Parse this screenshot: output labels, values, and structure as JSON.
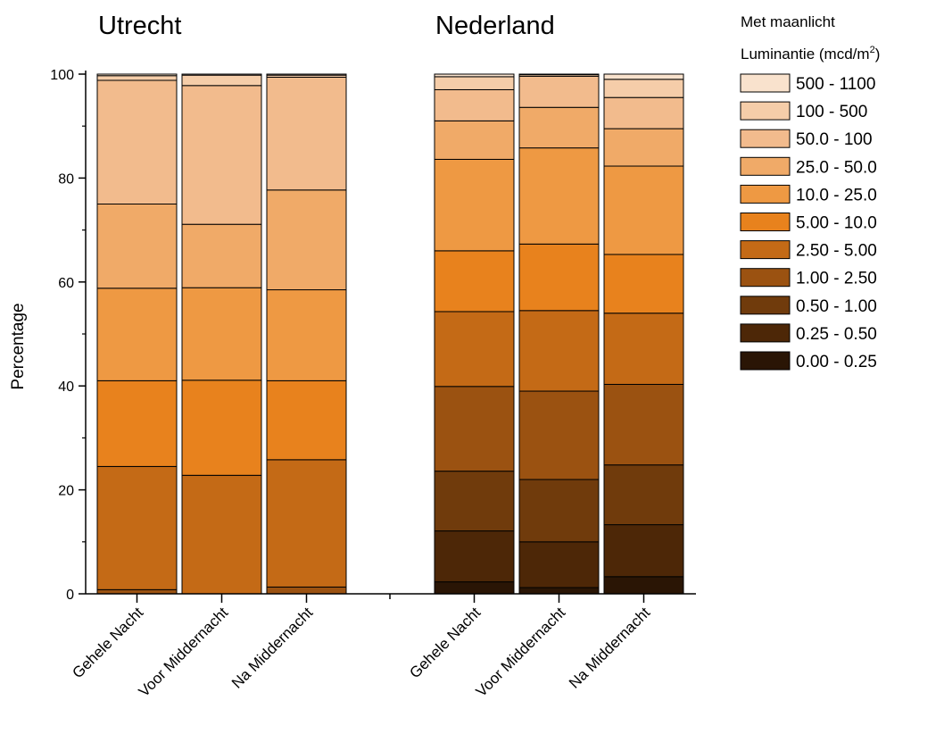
{
  "chart_data": {
    "type": "bar",
    "stacked": true,
    "ylabel": "Percentage",
    "ylim": [
      0,
      100
    ],
    "yticks": [
      0,
      20,
      40,
      60,
      80,
      100
    ],
    "grid": false,
    "legend": {
      "title": "Met maanlicht",
      "subtitle": "Luminantie (mcd/m",
      "subtitle_sup": "2",
      "subtitle_end": ")",
      "placement": "right"
    },
    "groups": [
      {
        "name": "Utrecht",
        "categories": [
          "Gehele Nacht",
          "Voor Middernacht",
          "Na Middernacht"
        ]
      },
      {
        "name": "Nederland",
        "categories": [
          "Gehele Nacht",
          "Voor Middernacht",
          "Na Middernacht"
        ]
      }
    ],
    "series": [
      {
        "name": "0.00 - 0.25",
        "color": "#2a1505",
        "values": [
          0,
          0,
          0,
          2.3,
          1.2,
          3.3
        ]
      },
      {
        "name": "0.25 - 0.50",
        "color": "#4d2707",
        "values": [
          0,
          0,
          0,
          9.8,
          8.8,
          10.0
        ]
      },
      {
        "name": "0.50 - 1.00",
        "color": "#703b0c",
        "values": [
          0,
          0,
          0,
          11.5,
          12.0,
          11.5
        ]
      },
      {
        "name": "1.00 - 2.50",
        "color": "#9b5211",
        "values": [
          0.8,
          0,
          1.3,
          16.3,
          17.0,
          15.5
        ]
      },
      {
        "name": "2.50 - 5.00",
        "color": "#c46a16",
        "values": [
          23.7,
          22.8,
          24.5,
          14.4,
          15.5,
          13.7
        ]
      },
      {
        "name": "5.00 - 10.0",
        "color": "#e8821d",
        "values": [
          16.5,
          18.3,
          15.2,
          11.7,
          12.8,
          11.3
        ]
      },
      {
        "name": "10.0 - 25.0",
        "color": "#ee9943",
        "values": [
          17.8,
          17.8,
          17.5,
          17.6,
          18.5,
          17.0
        ]
      },
      {
        "name": "25.0 - 50.0",
        "color": "#f0aa68",
        "values": [
          16.2,
          12.2,
          19.2,
          7.4,
          7.8,
          7.2
        ]
      },
      {
        "name": "50.0 - 100",
        "color": "#f2bb8d",
        "values": [
          23.8,
          26.7,
          21.7,
          6.0,
          6.0,
          6.0
        ]
      },
      {
        "name": "100  - 500",
        "color": "#f5cda9",
        "values": [
          0.9,
          2.0,
          0.4,
          2.5,
          0.3,
          3.5
        ]
      },
      {
        "name": "500  - 1100",
        "color": "#f9e2cd",
        "values": [
          0.3,
          0.2,
          0.2,
          0.5,
          0.1,
          1.0
        ]
      }
    ]
  }
}
